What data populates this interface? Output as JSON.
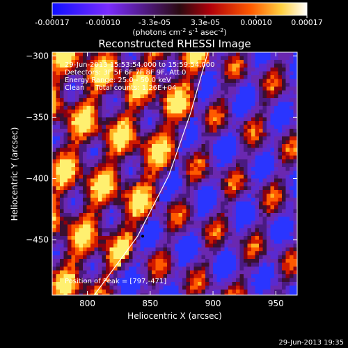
{
  "chart_data": {
    "type": "heatmap",
    "title": "Reconstructed RHESSI Image",
    "xlabel": "Heliocentric X (arcsec)",
    "ylabel": "Heliocentric Y (arcsec)",
    "xlim": [
      772,
      967
    ],
    "ylim": [
      -495,
      -297
    ],
    "x_ticks": [
      800,
      850,
      900,
      950
    ],
    "y_ticks": [
      -300,
      -350,
      -400,
      -450
    ],
    "colorbar": {
      "ticks": [
        "-0.00017",
        "-0.00010",
        "-3.3e-05",
        "3.3e-05",
        "0.00010",
        "0.00017"
      ],
      "unit_label": "(photons cm^-2 s^-1 asec^-2)",
      "range": [
        -0.00017,
        0.00017
      ]
    },
    "annotations": [
      "29-Jun-2013 15:53:54.000 to 15:59:54.000",
      "Detectors: 3F 5F 6F 7F 8F 9F, Att 0",
      "Energy Range: 25.0 - 50.0 keV",
      "Clean     Total counts: 1.26E+04",
      "Position of Peak = [797,-471]"
    ],
    "peak_position": [
      797,
      -471
    ],
    "limb_curve": [
      [
        804,
        -497
      ],
      [
        840,
        -447
      ],
      [
        865,
        -397
      ],
      [
        882,
        -347
      ],
      [
        896,
        -297
      ]
    ],
    "footer_date": "29-Jun-2013 19:35",
    "grid": false,
    "legend": "none"
  }
}
